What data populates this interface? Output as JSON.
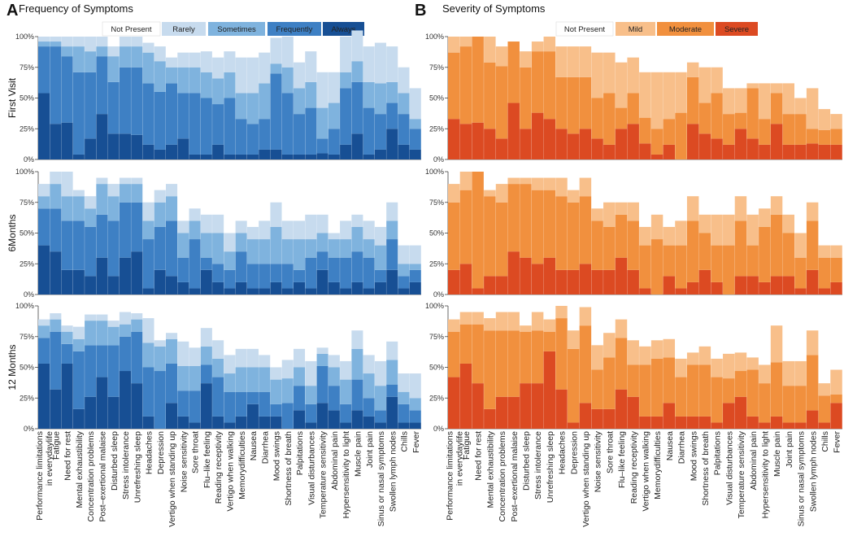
{
  "chart_data": [
    {
      "type": "bar",
      "stacked": true,
      "panel_letter": "A",
      "title": "Frequency of Symptoms",
      "legend": [
        "Not Present",
        "Rarely",
        "Sometimes",
        "Frequently",
        "Always"
      ],
      "colors": [
        "#ffffff",
        "#c7dbee",
        "#7fb3de",
        "#3e80c4",
        "#174f94"
      ],
      "ylim": [
        0,
        100
      ],
      "yticks": [
        "0%",
        "25%",
        "50%",
        "75%",
        "100%"
      ],
      "rows": [
        "First Visit",
        "6Months",
        "12 Months"
      ],
      "categories": [
        "Performance limitations in everydaylife",
        "Fatigue",
        "Need for rest",
        "Mental exhaustibility",
        "Concentration problems",
        "Post–exertional malaise",
        "Disturbed sleep",
        "Stress intolerance",
        "Unrefreshing sleep",
        "Headaches",
        "Depression",
        "Vertigo when standing up",
        "Noise sensitivity",
        "Sore throat",
        "Flu–like feeling",
        "Reading receptivity",
        "Vertigo when walking",
        "Memorydifficulties",
        "Nausea",
        "Diarrhea",
        "Mood swings",
        "Shortness of breath",
        "Palpitations",
        "Visual disturbances",
        "Temperature sensitivity",
        "Abdominal pain",
        "Hypersensitivity to light",
        "Muscle pain",
        "Joint pain",
        "Sinus or nasal symptoms",
        "Swollen lymph nodes",
        "Chills",
        "Fever"
      ],
      "series_by_row": [
        {
          "row": "First Visit",
          "series": [
            {
              "name": "Rarely",
              "values": [
                4,
                4,
                8,
                8,
                12,
                8,
                8,
                8,
                8,
                8,
                12,
                8,
                12,
                12,
                17,
                17,
                17,
                29,
                29,
                25,
                21,
                25,
                21,
                25,
                29,
                25,
                29,
                25,
                29,
                33,
                29,
                21,
                25
              ]
            },
            {
              "name": "Sometimes",
              "values": [
                4,
                4,
                8,
                21,
                17,
                8,
                21,
                17,
                17,
                25,
                25,
                13,
                21,
                21,
                21,
                21,
                21,
                21,
                25,
                29,
                8,
                21,
                21,
                21,
                25,
                21,
                13,
                17,
                21,
                25,
                17,
                17,
                8
              ]
            },
            {
              "name": "Frequently",
              "values": [
                38,
                63,
                54,
                67,
                54,
                47,
                42,
                54,
                55,
                50,
                47,
                50,
                37,
                50,
                46,
                33,
                46,
                29,
                25,
                25,
                62,
                50,
                33,
                38,
                12,
                21,
                46,
                42,
                38,
                29,
                21,
                25,
                17
              ]
            },
            {
              "name": "Always",
              "values": [
                54,
                29,
                30,
                4,
                17,
                37,
                21,
                21,
                20,
                12,
                8,
                12,
                17,
                4,
                4,
                12,
                4,
                4,
                4,
                8,
                8,
                4,
                4,
                4,
                5,
                4,
                12,
                21,
                4,
                8,
                25,
                12,
                8
              ]
            }
          ]
        },
        {
          "row": "6Months",
          "series": [
            {
              "name": "Rarely",
              "values": [
                10,
                10,
                20,
                5,
                10,
                5,
                10,
                5,
                5,
                15,
                10,
                10,
                10,
                10,
                15,
                15,
                15,
                10,
                10,
                15,
                20,
                15,
                15,
                20,
                15,
                5,
                15,
                10,
                15,
                15,
                15,
                15,
                15
              ]
            },
            {
              "name": "Sometimes",
              "values": [
                10,
                20,
                20,
                20,
                15,
                25,
                20,
                15,
                15,
                15,
                20,
                20,
                20,
                15,
                20,
                25,
                15,
                15,
                20,
                20,
                30,
                20,
                25,
                15,
                15,
                15,
                15,
                20,
                15,
                20,
                15,
                10,
                5
              ]
            },
            {
              "name": "Frequently",
              "values": [
                30,
                35,
                40,
                40,
                40,
                35,
                45,
                45,
                40,
                40,
                35,
                45,
                20,
                40,
                10,
                15,
                15,
                25,
                20,
                20,
                15,
                20,
                10,
                25,
                15,
                20,
                25,
                25,
                25,
                10,
                25,
                10,
                10
              ]
            },
            {
              "name": "Always",
              "values": [
                40,
                35,
                20,
                20,
                15,
                30,
                15,
                30,
                35,
                5,
                20,
                15,
                10,
                5,
                20,
                10,
                5,
                10,
                5,
                5,
                10,
                5,
                10,
                5,
                20,
                10,
                5,
                10,
                5,
                10,
                20,
                5,
                10
              ]
            }
          ]
        },
        {
          "row": "12 Months",
          "series": [
            {
              "name": "Rarely",
              "values": [
                5,
                5,
                5,
                10,
                5,
                5,
                5,
                10,
                5,
                20,
                5,
                5,
                20,
                15,
                15,
                15,
                15,
                15,
                15,
                10,
                10,
                15,
                15,
                20,
                5,
                10,
                15,
                15,
                15,
                20,
                15,
                15,
                20
              ]
            },
            {
              "name": "Sometimes",
              "values": [
                10,
                10,
                10,
                10,
                20,
                20,
                15,
                10,
                10,
                20,
                20,
                20,
                20,
                20,
                15,
                15,
                15,
                20,
                20,
                20,
                20,
                20,
                15,
                15,
                10,
                15,
                20,
                25,
                20,
                20,
                20,
                10,
                10
              ]
            },
            {
              "name": "Frequently",
              "values": [
                21,
                47,
                16,
                47,
                42,
                26,
                42,
                28,
                42,
                40,
                47,
                32,
                21,
                26,
                15,
                32,
                25,
                20,
                10,
                20,
                10,
                21,
                20,
                15,
                30,
                20,
                15,
                25,
                15,
                10,
                10,
                15,
                10
              ]
            },
            {
              "name": "Always",
              "values": [
                53,
                32,
                53,
                16,
                26,
                42,
                26,
                47,
                37,
                10,
                0,
                21,
                10,
                5,
                37,
                10,
                5,
                10,
                20,
                10,
                10,
                0,
                15,
                5,
                21,
                15,
                5,
                15,
                10,
                5,
                26,
                5,
                5
              ]
            }
          ]
        }
      ]
    },
    {
      "type": "bar",
      "stacked": true,
      "panel_letter": "B",
      "title": "Severity of Symptoms",
      "legend": [
        "Not Present",
        "Mild",
        "Moderate",
        "Severe"
      ],
      "colors": [
        "#ffffff",
        "#f8bf8a",
        "#f1903e",
        "#dc4a22"
      ],
      "ylim": [
        0,
        100
      ],
      "yticks": [
        "0%",
        "25%",
        "50%",
        "75%",
        "100%"
      ],
      "rows": [
        "First Visit",
        "6Months",
        "12 Months"
      ],
      "categories": [
        "Performance limitations in everydaylife",
        "Fatigue",
        "Need for rest",
        "Mental exhaustibility",
        "Concentration problems",
        "Post–exertional malaise",
        "Disturbed sleep",
        "Stress intolerance",
        "Unrefreshing sleep",
        "Headaches",
        "Depression",
        "Vertigo when standing up",
        "Noise sensitivity",
        "Sore throat",
        "Flu–like feeling",
        "Reading receptivity",
        "Vertigo when walking",
        "Memorydifficulties",
        "Nausea",
        "Diarrhea",
        "Mood swings",
        "Shortness of breath",
        "Palpitations",
        "Visual disturbances",
        "Temperature sensitivity",
        "Abdominal pain",
        "Hypersensitivity to light",
        "Muscle pain",
        "Joint pain",
        "Sinus or nasal symptoms",
        "Swollen lymph nodes",
        "Chills",
        "Fever"
      ],
      "series_by_row": [
        {
          "row": "First Visit",
          "series": [
            {
              "name": "Mild",
              "values": [
                13,
                8,
                0,
                21,
                16,
                0,
                13,
                8,
                12,
                25,
                25,
                25,
                37,
                33,
                37,
                29,
                37,
                46,
                38,
                33,
                12,
                29,
                21,
                21,
                20,
                4,
                29,
                8,
                25,
                13,
                33,
                17,
                12
              ]
            },
            {
              "name": "Moderate",
              "values": [
                54,
                63,
                70,
                54,
                59,
                50,
                50,
                50,
                55,
                42,
                46,
                42,
                33,
                42,
                17,
                25,
                21,
                21,
                21,
                38,
                38,
                25,
                37,
                25,
                13,
                41,
                21,
                25,
                25,
                25,
                12,
                12,
                13
              ]
            },
            {
              "name": "Severe",
              "values": [
                33,
                29,
                30,
                25,
                17,
                46,
                25,
                38,
                33,
                25,
                21,
                25,
                17,
                12,
                25,
                29,
                13,
                4,
                12,
                0,
                29,
                21,
                17,
                12,
                25,
                17,
                12,
                29,
                12,
                12,
                13,
                12,
                12
              ]
            }
          ]
        },
        {
          "row": "6Months",
          "series": [
            {
              "name": "Mild",
              "values": [
                15,
                15,
                0,
                5,
                15,
                5,
                5,
                10,
                10,
                15,
                10,
                15,
                10,
                20,
                10,
                15,
                15,
                20,
                15,
                20,
                20,
                15,
                25,
                25,
                20,
                25,
                15,
                15,
                15,
                20,
                15,
                10,
                10
              ]
            },
            {
              "name": "Moderate",
              "values": [
                55,
                60,
                95,
                65,
                60,
                55,
                60,
                60,
                55,
                60,
                55,
                55,
                40,
                35,
                35,
                40,
                35,
                45,
                25,
                35,
                50,
                30,
                30,
                40,
                45,
                25,
                45,
                50,
                35,
                25,
                40,
                25,
                20
              ]
            },
            {
              "name": "Severe",
              "values": [
                20,
                25,
                5,
                15,
                15,
                35,
                30,
                25,
                30,
                20,
                20,
                25,
                20,
                20,
                30,
                20,
                5,
                0,
                15,
                5,
                10,
                20,
                10,
                0,
                15,
                15,
                10,
                15,
                15,
                5,
                20,
                5,
                10
              ]
            }
          ]
        },
        {
          "row": "12 Months",
          "series": [
            {
              "name": "Mild",
              "values": [
                10,
                10,
                10,
                10,
                15,
                15,
                5,
                15,
                10,
                10,
                15,
                15,
                20,
                20,
                15,
                20,
                15,
                15,
                15,
                15,
                10,
                15,
                15,
                20,
                15,
                10,
                15,
                30,
                20,
                20,
                20,
                10,
                20
              ]
            },
            {
              "name": "Moderate",
              "values": [
                37,
                32,
                48,
                64,
                54,
                54,
                42,
                43,
                16,
                58,
                60,
                63,
                32,
                42,
                42,
                26,
                42,
                47,
                37,
                32,
                42,
                42,
                37,
                20,
                21,
                38,
                32,
                44,
                30,
                30,
                45,
                22,
                7
              ]
            },
            {
              "name": "Severe",
              "values": [
                42,
                53,
                37,
                16,
                26,
                26,
                37,
                37,
                63,
                32,
                5,
                21,
                16,
                16,
                32,
                26,
                10,
                10,
                21,
                10,
                10,
                10,
                5,
                21,
                26,
                10,
                5,
                10,
                5,
                5,
                15,
                5,
                21
              ]
            }
          ]
        }
      ]
    }
  ]
}
